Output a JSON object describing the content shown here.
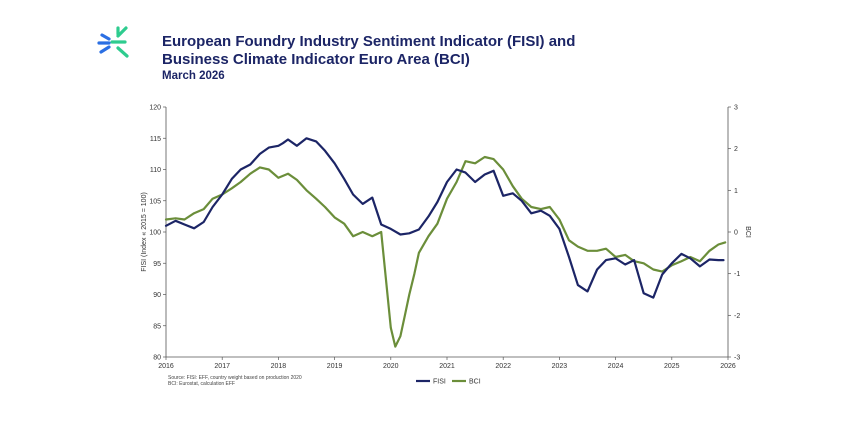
{
  "header": {
    "title_line_1": "European Foundry Industry Sentiment Indicator (FISI) and",
    "title_line_2": "Business Climate Indicator Euro Area (BCI)",
    "subtitle": "March 2026",
    "logo_icon": "cast-logo-icon",
    "logo_colors": [
      "#2ecc8f",
      "#2b6fe3"
    ]
  },
  "footer": {
    "source_line_1": "Source: FISI: EFF, country weight based on production 2020",
    "source_line_2": "BCI: Eurostat, calculation EFF"
  },
  "chart_data": {
    "type": "line",
    "title": "",
    "xlabel": "",
    "ylabel_left": "FISI (Index « 2015 = 100)",
    "ylabel_right": "BCI",
    "ylim_left": [
      80,
      120
    ],
    "ylim_right": [
      -3,
      3
    ],
    "xlim": [
      2016,
      2026
    ],
    "x_ticks": [
      "2016",
      "2017",
      "2018",
      "2019",
      "2020",
      "2021",
      "2022",
      "2023",
      "2024",
      "2025",
      "2026"
    ],
    "y_ticks_left": [
      "80",
      "85",
      "90",
      "95",
      "100",
      "105",
      "110",
      "115",
      "120"
    ],
    "y_ticks_right": [
      "-3",
      "-2",
      "-1",
      "0",
      "1",
      "2",
      "3"
    ],
    "grid": false,
    "legend_position": "bottom-center",
    "series": [
      {
        "name": "FISI",
        "axis": "left",
        "color": "#1c2566",
        "x": [
          2016.0,
          2016.17,
          2016.33,
          2016.5,
          2016.67,
          2016.83,
          2017.0,
          2017.17,
          2017.33,
          2017.5,
          2017.67,
          2017.83,
          2018.0,
          2018.08,
          2018.17,
          2018.33,
          2018.5,
          2018.67,
          2018.83,
          2019.0,
          2019.17,
          2019.33,
          2019.5,
          2019.67,
          2019.83,
          2020.0,
          2020.17,
          2020.33,
          2020.5,
          2020.67,
          2020.83,
          2021.0,
          2021.17,
          2021.33,
          2021.5,
          2021.67,
          2021.83,
          2022.0,
          2022.17,
          2022.33,
          2022.5,
          2022.67,
          2022.83,
          2023.0,
          2023.17,
          2023.33,
          2023.5,
          2023.67,
          2023.83,
          2024.0,
          2024.17,
          2024.33,
          2024.5,
          2024.67,
          2024.83,
          2025.0,
          2025.17,
          2025.33,
          2025.5,
          2025.67,
          2025.83,
          2025.92
        ],
        "values": [
          101.0,
          101.8,
          101.2,
          100.6,
          101.6,
          104.0,
          106.0,
          108.5,
          110.0,
          110.8,
          112.5,
          113.5,
          113.8,
          114.2,
          114.8,
          113.8,
          115.0,
          114.5,
          113.0,
          111.0,
          108.5,
          106.0,
          104.5,
          105.5,
          101.2,
          100.5,
          99.6,
          99.8,
          100.4,
          102.5,
          104.8,
          108.0,
          110.0,
          109.5,
          108.0,
          109.2,
          109.8,
          105.8,
          106.2,
          105.0,
          103.0,
          103.4,
          102.6,
          100.5,
          96.0,
          91.5,
          90.5,
          94.0,
          95.5,
          95.8,
          94.8,
          95.5,
          90.2,
          89.5,
          93.2,
          95.0,
          96.5,
          95.8,
          94.5,
          95.6,
          95.5,
          95.5
        ]
      },
      {
        "name": "BCI",
        "axis": "right",
        "color": "#6b8e3a",
        "x": [
          2016.0,
          2016.17,
          2016.33,
          2016.5,
          2016.67,
          2016.83,
          2017.0,
          2017.17,
          2017.33,
          2017.5,
          2017.67,
          2017.83,
          2018.0,
          2018.17,
          2018.33,
          2018.5,
          2018.67,
          2018.83,
          2019.0,
          2019.17,
          2019.33,
          2019.5,
          2019.67,
          2019.83,
          2020.0,
          2020.08,
          2020.17,
          2020.25,
          2020.33,
          2020.42,
          2020.5,
          2020.67,
          2020.83,
          2021.0,
          2021.17,
          2021.33,
          2021.5,
          2021.67,
          2021.83,
          2022.0,
          2022.17,
          2022.33,
          2022.5,
          2022.67,
          2022.83,
          2023.0,
          2023.17,
          2023.33,
          2023.5,
          2023.67,
          2023.83,
          2024.0,
          2024.17,
          2024.33,
          2024.5,
          2024.67,
          2024.83,
          2025.0,
          2025.17,
          2025.33,
          2025.5,
          2025.67,
          2025.83,
          2025.95
        ],
        "values": [
          0.3,
          0.33,
          0.3,
          0.45,
          0.55,
          0.8,
          0.9,
          1.05,
          1.2,
          1.4,
          1.55,
          1.5,
          1.3,
          1.4,
          1.25,
          1.0,
          0.8,
          0.6,
          0.35,
          0.2,
          -0.1,
          0.0,
          -0.1,
          0.0,
          -2.3,
          -2.75,
          -2.5,
          -2.0,
          -1.5,
          -1.0,
          -0.5,
          -0.1,
          0.2,
          0.8,
          1.2,
          1.7,
          1.65,
          1.8,
          1.75,
          1.5,
          1.1,
          0.8,
          0.6,
          0.55,
          0.6,
          0.3,
          -0.2,
          -0.35,
          -0.45,
          -0.45,
          -0.4,
          -0.6,
          -0.55,
          -0.7,
          -0.75,
          -0.9,
          -0.95,
          -0.8,
          -0.7,
          -0.6,
          -0.7,
          -0.45,
          -0.3,
          -0.25
        ]
      }
    ]
  }
}
